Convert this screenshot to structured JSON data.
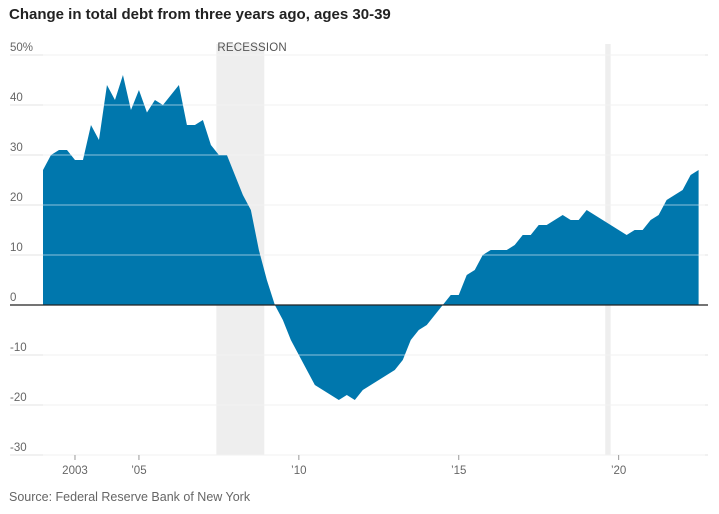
{
  "title": "Change in total debt from three years ago, ages 30-39",
  "source": "Source: Federal Reserve Bank of New York",
  "colors": {
    "area": "#0077ad",
    "recession": "#eeeeee",
    "grid": "#e3e3e3",
    "zero_line": "#222222"
  },
  "chart_data": {
    "type": "area",
    "title": "Change in total debt from three years ago, ages 30-39",
    "xlabel": "",
    "ylabel": "",
    "ylim": [
      -30,
      50
    ],
    "y_ticks": [
      {
        "value": 50,
        "label": "50%"
      },
      {
        "value": 40,
        "label": "40"
      },
      {
        "value": 30,
        "label": "30"
      },
      {
        "value": 20,
        "label": "20"
      },
      {
        "value": 10,
        "label": "10"
      },
      {
        "value": 0,
        "label": "0"
      },
      {
        "value": -10,
        "label": "-10"
      },
      {
        "value": -20,
        "label": "-20"
      },
      {
        "value": -30,
        "label": "-30"
      }
    ],
    "x_ticks": [
      {
        "value": 2003.5,
        "label": "2003"
      },
      {
        "value": 2005.5,
        "label": "’05"
      },
      {
        "value": 2010.5,
        "label": "’10"
      },
      {
        "value": 2015.5,
        "label": "’15"
      },
      {
        "value": 2020.5,
        "label": "’20"
      }
    ],
    "xlim": [
      2002.5,
      2023.2
    ],
    "grid": true,
    "recessions": [
      {
        "start": 2007.92,
        "end": 2009.42,
        "label": "RECESSION"
      },
      {
        "start": 2020.08,
        "end": 2020.25,
        "label": ""
      }
    ],
    "series": [
      {
        "x": [
          2002.5,
          2002.75,
          2003.0,
          2003.25,
          2003.5,
          2003.75,
          2004.0,
          2004.25,
          2004.5,
          2004.75,
          2005.0,
          2005.25,
          2005.5,
          2005.75,
          2006.0,
          2006.25,
          2006.5,
          2006.75,
          2007.0,
          2007.25,
          2007.5,
          2007.75,
          2008.0,
          2008.25,
          2008.5,
          2008.75,
          2009.0,
          2009.25,
          2009.5,
          2009.75,
          2010.0,
          2010.25,
          2010.5,
          2010.75,
          2011.0,
          2011.25,
          2011.5,
          2011.75,
          2012.0,
          2012.25,
          2012.5,
          2012.75,
          2013.0,
          2013.25,
          2013.5,
          2013.75,
          2014.0,
          2014.25,
          2014.5,
          2014.75,
          2015.0,
          2015.25,
          2015.5,
          2015.75,
          2016.0,
          2016.25,
          2016.5,
          2016.75,
          2017.0,
          2017.25,
          2017.5,
          2017.75,
          2018.0,
          2018.25,
          2018.5,
          2018.75,
          2019.0,
          2019.25,
          2019.5,
          2019.75,
          2020.0,
          2020.25,
          2020.5,
          2020.75,
          2021.0,
          2021.25,
          2021.5,
          2021.75,
          2022.0,
          2022.25,
          2022.5,
          2022.75,
          2023.0
        ],
        "values": [
          27,
          30,
          31,
          31,
          29,
          29,
          36,
          33,
          44,
          41,
          46,
          39,
          43,
          38.5,
          41,
          40,
          42,
          44,
          36,
          36,
          37,
          32,
          30,
          30,
          26,
          22,
          19,
          11,
          5,
          0,
          -3,
          -7,
          -10,
          -13,
          -16,
          -17,
          -18,
          -19,
          -18,
          -19,
          -17,
          -16,
          -15,
          -14,
          -13,
          -11,
          -7,
          -5,
          -4,
          -2,
          0,
          2,
          2,
          6,
          7,
          10,
          11,
          11,
          11,
          12,
          14,
          14,
          16,
          16,
          17,
          18,
          17,
          17,
          19,
          18,
          17,
          16,
          15,
          14,
          15,
          15,
          17,
          18,
          21,
          22,
          23,
          26,
          27
        ]
      }
    ]
  }
}
